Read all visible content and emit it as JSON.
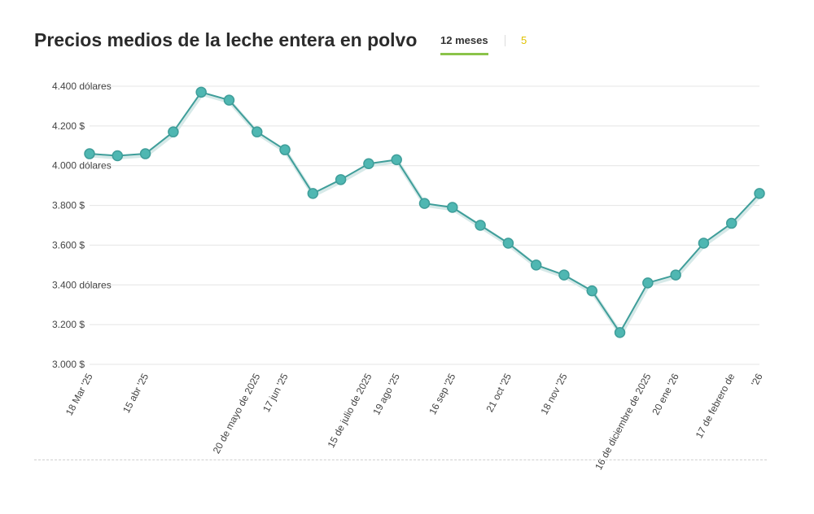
{
  "header": {
    "title": "Precios medios de la leche entera en polvo",
    "tabs": [
      {
        "label": "12 meses",
        "active": true
      },
      {
        "label": "5",
        "active": false
      }
    ]
  },
  "colors": {
    "line": "#3f9e9a",
    "marker": "#4fb7b2",
    "grid": "#e4e4e4",
    "tab_underline": "#8bc34a",
    "text": "#444444"
  },
  "chart_data": {
    "type": "line",
    "title": "Precios medios de la leche entera en polvo",
    "xlabel": "",
    "ylabel": "",
    "ylim": [
      3000,
      4400
    ],
    "grid": true,
    "y_ticks": [
      {
        "value": 4400,
        "label": "4.400 dólares"
      },
      {
        "value": 4200,
        "label": "4.200 $"
      },
      {
        "value": 4000,
        "label": "4.000 dólares"
      },
      {
        "value": 3800,
        "label": "3.800 $"
      },
      {
        "value": 3600,
        "label": "3.600 $"
      },
      {
        "value": 3400,
        "label": "3.400 dólares"
      },
      {
        "value": 3200,
        "label": "3.200 $"
      },
      {
        "value": 3000,
        "label": "3.000 $"
      }
    ],
    "x_ticks": [
      {
        "index": 0,
        "label": "18 Mar '25"
      },
      {
        "index": 2,
        "label": "15 abr '25"
      },
      {
        "index": 6,
        "label": "20 de mayo de 2025"
      },
      {
        "index": 7,
        "label": "17 jun '25"
      },
      {
        "index": 10,
        "label": "15 de julio de 2025"
      },
      {
        "index": 11,
        "label": "19 ago '25"
      },
      {
        "index": 13,
        "label": "16 sep '25"
      },
      {
        "index": 15,
        "label": "21 oct '25"
      },
      {
        "index": 17,
        "label": "18 nov '25"
      },
      {
        "index": 20,
        "label": "16 de diciembre de 2025"
      },
      {
        "index": 21,
        "label": "20 ene '26"
      },
      {
        "index": 23,
        "label": "17 de febrero de"
      },
      {
        "index": 24,
        "label": "'26"
      }
    ],
    "series": [
      {
        "name": "Leche entera en polvo",
        "values": [
          4060,
          4050,
          4060,
          4170,
          4370,
          4330,
          4170,
          4080,
          3860,
          3930,
          4010,
          4030,
          3810,
          3790,
          3700,
          3610,
          3500,
          3450,
          3370,
          3160,
          3410,
          3450,
          3610,
          3710,
          3860
        ]
      }
    ]
  }
}
